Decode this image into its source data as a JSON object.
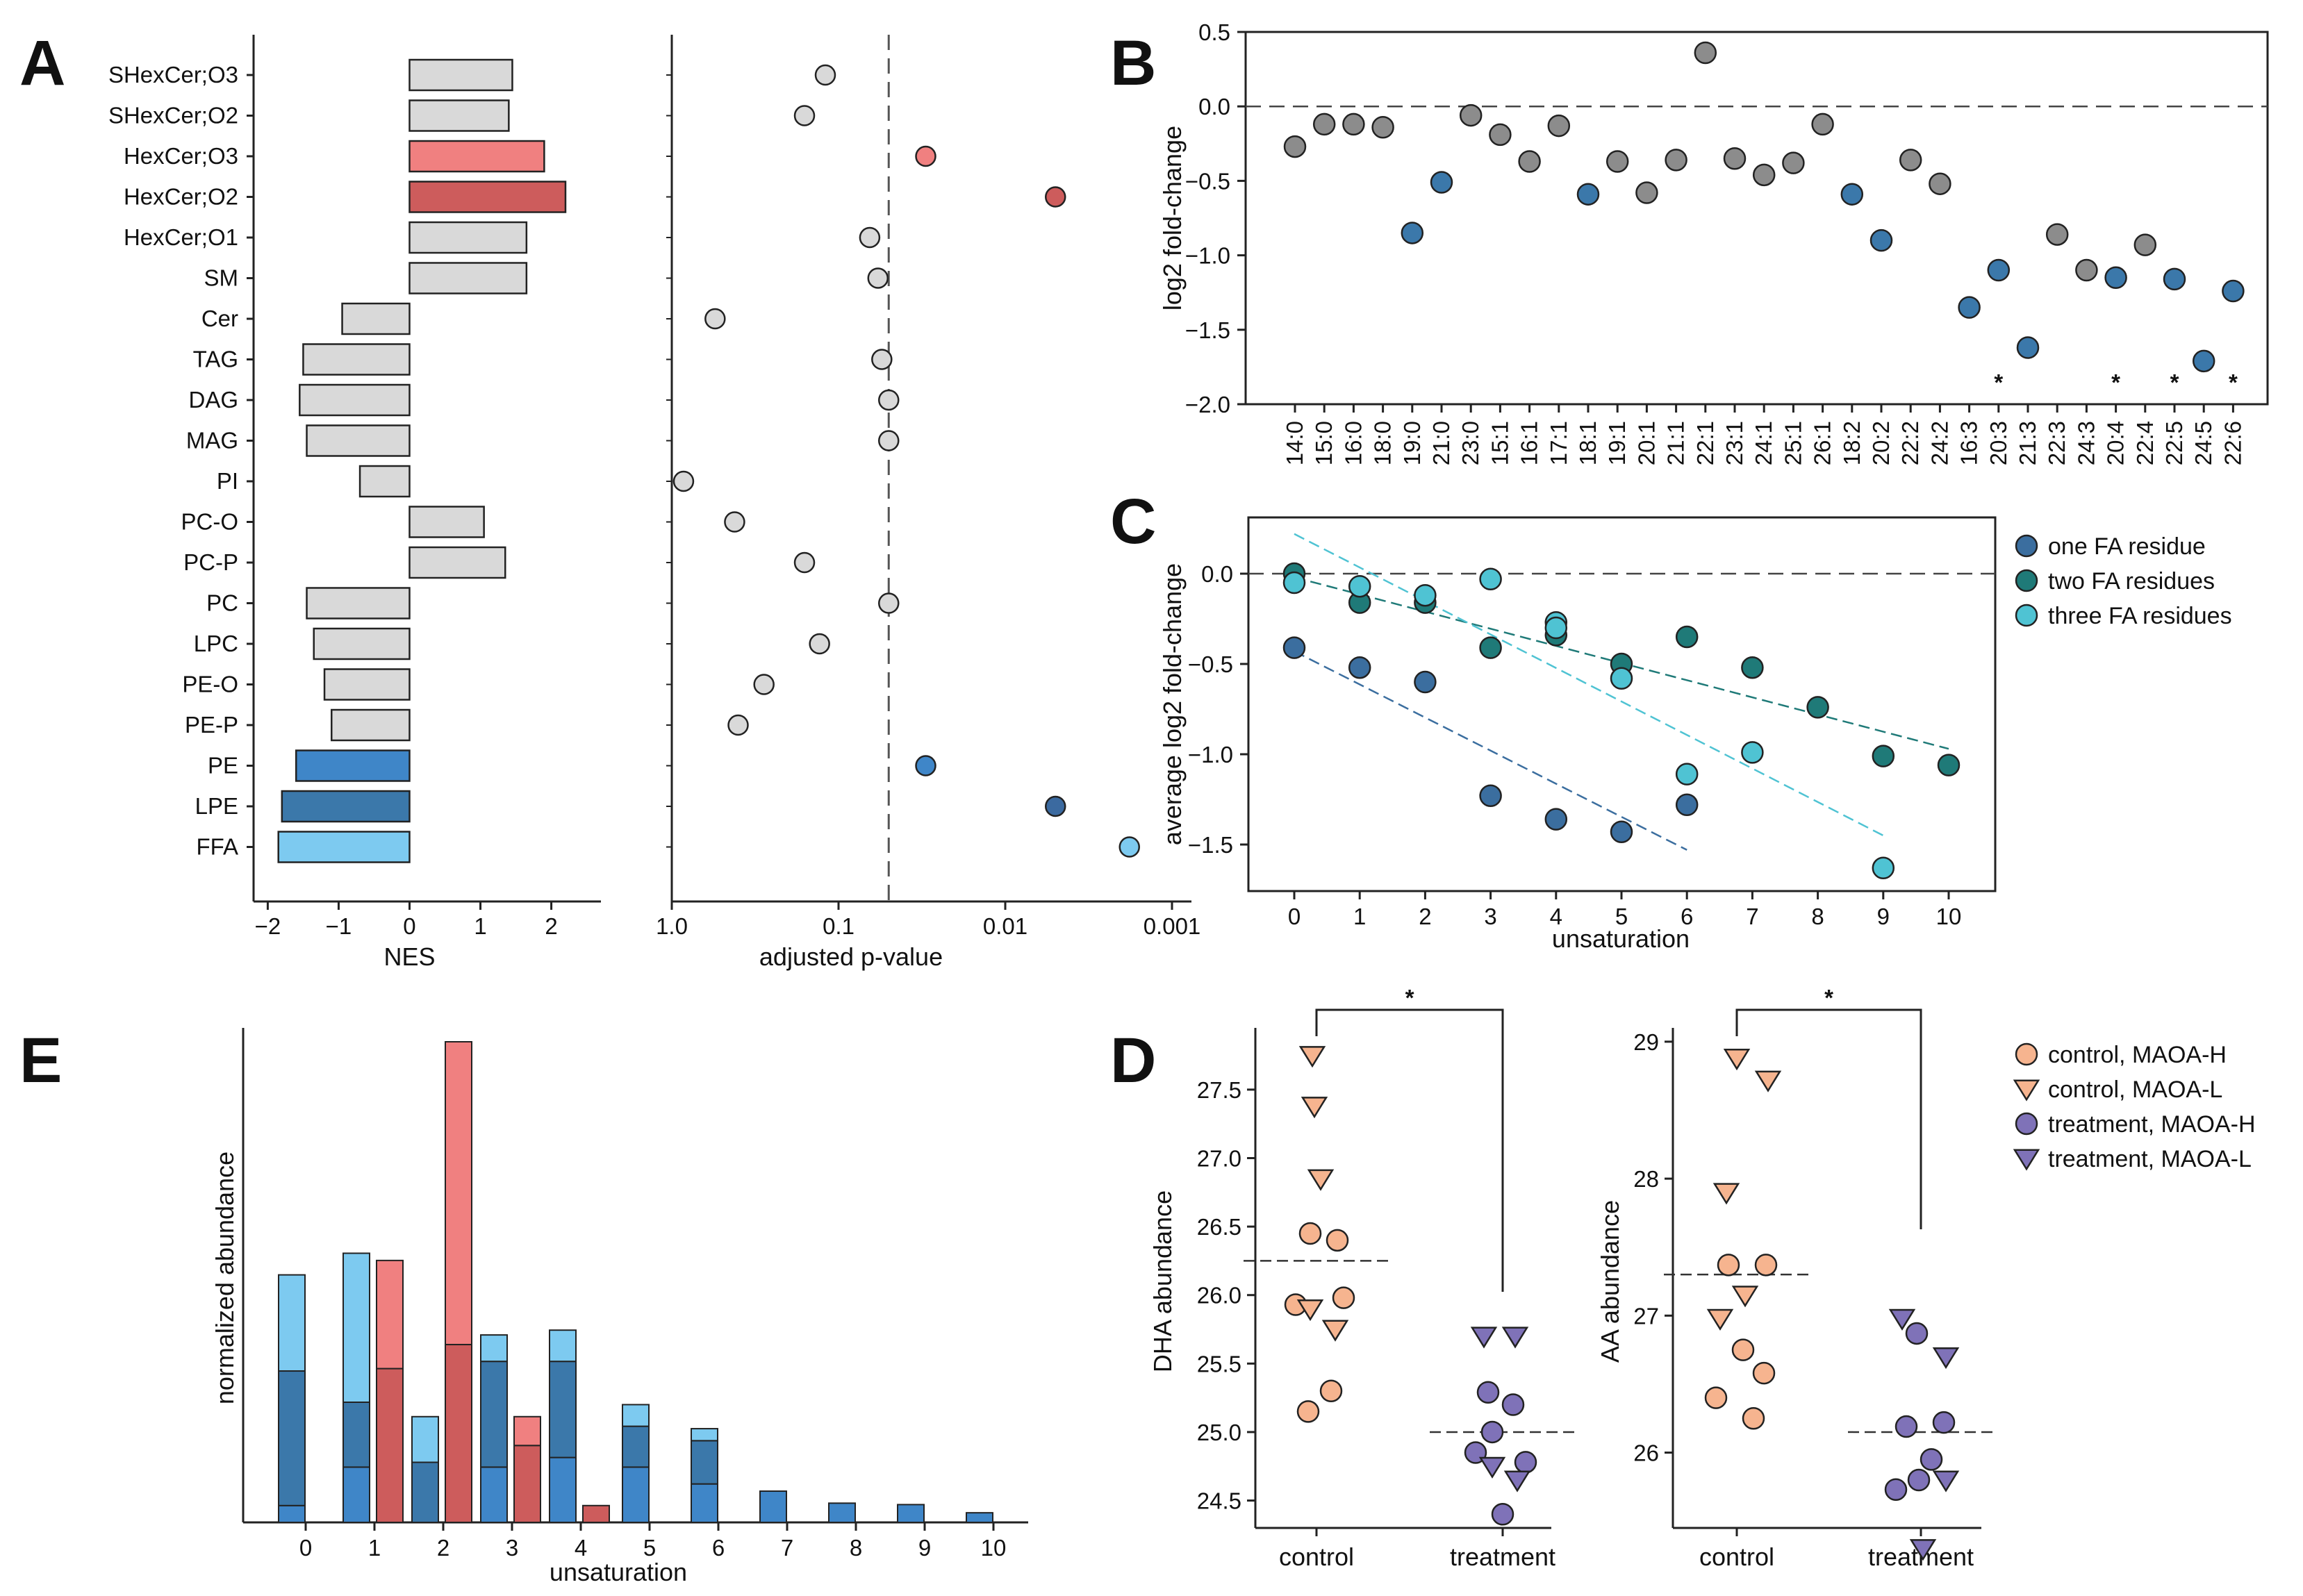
{
  "figure": {
    "panels": [
      "A",
      "B",
      "C",
      "D",
      "E"
    ]
  },
  "chart_data": [
    {
      "id": "A-left",
      "type": "bar",
      "orientation": "horizontal",
      "categories": [
        "SHexCer;O3",
        "SHexCer;O2",
        "HexCer;O3",
        "HexCer;O2",
        "HexCer;O1",
        "SM",
        "Cer",
        "TAG",
        "DAG",
        "MAG",
        "PI",
        "PC-O",
        "PC-P",
        "PC",
        "LPC",
        "PE-O",
        "PE-P",
        "PE",
        "LPE",
        "FFA"
      ],
      "values": [
        1.45,
        1.4,
        1.9,
        2.2,
        1.65,
        1.65,
        -0.95,
        -1.5,
        -1.55,
        -1.45,
        -0.7,
        1.05,
        1.35,
        -1.45,
        -1.35,
        -1.2,
        -1.1,
        -1.6,
        -1.8,
        -1.85
      ],
      "colors": [
        "#d9d9d9",
        "#d9d9d9",
        "#f08080",
        "#cd5c5c",
        "#d9d9d9",
        "#d9d9d9",
        "#d9d9d9",
        "#d9d9d9",
        "#d9d9d9",
        "#d9d9d9",
        "#d9d9d9",
        "#d9d9d9",
        "#d9d9d9",
        "#d9d9d9",
        "#d9d9d9",
        "#d9d9d9",
        "#d9d9d9",
        "#3f86c8",
        "#3b78aa",
        "#7dcaf0"
      ],
      "xlabel": "NES",
      "xlim": [
        -2.2,
        2.7
      ],
      "xticks": [
        -2,
        -1,
        0,
        1,
        2
      ],
      "xtick_labels": [
        "−2",
        "−1",
        "0",
        "1",
        "2"
      ]
    },
    {
      "id": "A-right",
      "type": "scatter",
      "xscale": "log-reversed",
      "categories": [
        "SHexCer;O3",
        "SHexCer;O2",
        "HexCer;O3",
        "HexCer;O2",
        "HexCer;O1",
        "SM",
        "Cer",
        "TAG",
        "DAG",
        "MAG",
        "PI",
        "PC-O",
        "PC-P",
        "PC",
        "LPC",
        "PE-O",
        "PE-P",
        "PE",
        "LPE",
        "FFA"
      ],
      "pvalues": [
        0.12,
        0.16,
        0.03,
        0.005,
        0.065,
        0.058,
        0.55,
        0.055,
        0.05,
        0.05,
        0.85,
        0.42,
        0.16,
        0.05,
        0.13,
        0.28,
        0.4,
        0.03,
        0.005,
        0.0018
      ],
      "colors": [
        "#d9d9d9",
        "#d9d9d9",
        "#f08080",
        "#cd5c5c",
        "#d9d9d9",
        "#d9d9d9",
        "#d9d9d9",
        "#d9d9d9",
        "#d9d9d9",
        "#d9d9d9",
        "#d9d9d9",
        "#d9d9d9",
        "#d9d9d9",
        "#d9d9d9",
        "#d9d9d9",
        "#d9d9d9",
        "#d9d9d9",
        "#3f86c8",
        "#3b6aa0",
        "#7dcaf0"
      ],
      "threshold": 0.05,
      "xlabel": "adjusted p-value",
      "xticks": [
        1.0,
        0.1,
        0.01,
        0.001
      ],
      "xtick_labels": [
        "1.0",
        "0.1",
        "0.01",
        "0.001"
      ]
    },
    {
      "id": "B",
      "type": "scatter",
      "categories": [
        "14:0",
        "15:0",
        "16:0",
        "18:0",
        "19:0",
        "21:0",
        "23:0",
        "15:1",
        "16:1",
        "17:1",
        "18:1",
        "19:1",
        "20:1",
        "21:1",
        "22:1",
        "23:1",
        "24:1",
        "25:1",
        "26:1",
        "18:2",
        "20:2",
        "22:2",
        "24:2",
        "16:3",
        "20:3",
        "21:3",
        "22:3",
        "24:3",
        "20:4",
        "22:4",
        "22:5",
        "24:5",
        "22:6"
      ],
      "values": [
        -0.27,
        -0.12,
        -0.12,
        -0.14,
        -0.85,
        -0.51,
        -0.06,
        -0.19,
        -0.37,
        -0.13,
        -0.59,
        -0.37,
        -0.58,
        -0.36,
        0.36,
        -0.35,
        -0.46,
        -0.38,
        -0.12,
        -0.59,
        -0.9,
        -0.36,
        -0.52,
        -1.35,
        -1.1,
        -1.62,
        -0.86,
        -1.1,
        -1.15,
        -0.93,
        -1.16,
        -1.71,
        -1.24
      ],
      "point_type": [
        "gray",
        "gray",
        "gray",
        "gray",
        "blue",
        "blue",
        "gray",
        "gray",
        "gray",
        "gray",
        "blue",
        "gray",
        "gray",
        "gray",
        "gray",
        "gray",
        "gray",
        "gray",
        "gray",
        "blue",
        "blue",
        "gray",
        "gray",
        "blue",
        "blue",
        "blue",
        "gray",
        "gray",
        "blue",
        "gray",
        "blue",
        "blue",
        "blue"
      ],
      "significant": [
        "20:3",
        "20:4",
        "22:5",
        "22:6"
      ],
      "star_label": "*",
      "colors": {
        "gray": "#8c8c8c",
        "blue": "#3b78aa"
      },
      "ylabel": "log2 fold-change",
      "ylim": [
        -2.0,
        0.5
      ],
      "yticks": [
        0.5,
        0.0,
        -0.5,
        -1.0,
        -1.5,
        -2.0
      ],
      "ytick_labels": [
        "0.5",
        "0.0",
        "−0.5",
        "−1.0",
        "−1.5",
        "−2.0"
      ]
    },
    {
      "id": "C",
      "type": "scatter",
      "xlabel": "unsaturation",
      "ylabel": "average log2 fold-change",
      "xlim": [
        -0.7,
        10.7
      ],
      "ylim": [
        -1.75,
        0.3
      ],
      "xticks": [
        0,
        1,
        2,
        3,
        4,
        5,
        6,
        7,
        8,
        9,
        10
      ],
      "yticks": [
        0.0,
        -0.5,
        -1.0,
        -1.5
      ],
      "ytick_labels": [
        "0.0",
        "−0.5",
        "−1.0",
        "−1.5"
      ],
      "series": [
        {
          "name": "one FA residue",
          "color": "#3b6e9f",
          "x": [
            0,
            1,
            2,
            3,
            4,
            5,
            6
          ],
          "y": [
            -0.41,
            -0.52,
            -0.6,
            -1.23,
            -1.36,
            -1.43,
            -1.28
          ],
          "trend": [
            [
              0,
              -0.43
            ],
            [
              6,
              -1.53
            ]
          ]
        },
        {
          "name": "two FA residues",
          "color": "#1f7a78",
          "x": [
            0,
            1,
            2,
            3,
            4,
            5,
            6,
            7,
            8,
            9,
            10
          ],
          "y": [
            0.0,
            -0.16,
            -0.16,
            -0.41,
            -0.34,
            -0.5,
            -0.35,
            -0.52,
            -0.74,
            -1.01,
            -1.06
          ],
          "trend": [
            [
              0,
              -0.02
            ],
            [
              10,
              -0.97
            ]
          ]
        },
        {
          "name": "three FA residues",
          "color": "#4fc3d3",
          "x": [
            0,
            1,
            2,
            3,
            4,
            4,
            5,
            6,
            7,
            9
          ],
          "y": [
            -0.05,
            -0.07,
            -0.12,
            -0.03,
            -0.27,
            -0.3,
            -0.58,
            -1.11,
            -0.99,
            -1.63
          ],
          "trend": [
            [
              0,
              0.22
            ],
            [
              9,
              -1.45
            ]
          ]
        }
      ]
    },
    {
      "id": "D-left",
      "type": "scatter",
      "categories": [
        "control",
        "treatment"
      ],
      "ylabel": "DHA abundance",
      "ylim": [
        24.3,
        27.9
      ],
      "yticks": [
        24.5,
        25.0,
        25.5,
        26.0,
        26.5,
        27.0,
        27.5
      ],
      "ytick_labels": [
        "24.5",
        "25.0",
        "25.5",
        "26.0",
        "26.5",
        "27.0",
        "27.5"
      ],
      "means": [
        26.25,
        25.0
      ],
      "sig_label": "*",
      "points": [
        {
          "group": "control",
          "x": -0.02,
          "y": 27.75,
          "marker": "triangle"
        },
        {
          "group": "control",
          "x": -0.01,
          "y": 27.38,
          "marker": "triangle"
        },
        {
          "group": "control",
          "x": 0.02,
          "y": 26.85,
          "marker": "triangle"
        },
        {
          "group": "control",
          "x": -0.03,
          "y": 26.45,
          "marker": "circle"
        },
        {
          "group": "control",
          "x": 0.1,
          "y": 26.4,
          "marker": "circle"
        },
        {
          "group": "control",
          "x": 0.13,
          "y": 25.98,
          "marker": "circle"
        },
        {
          "group": "control",
          "x": -0.1,
          "y": 25.93,
          "marker": "circle"
        },
        {
          "group": "control",
          "x": -0.03,
          "y": 25.9,
          "marker": "triangle"
        },
        {
          "group": "control",
          "x": 0.09,
          "y": 25.75,
          "marker": "triangle"
        },
        {
          "group": "control",
          "x": 0.07,
          "y": 25.3,
          "marker": "circle"
        },
        {
          "group": "control",
          "x": -0.04,
          "y": 25.15,
          "marker": "circle"
        },
        {
          "group": "treatment",
          "x": -0.09,
          "y": 25.7,
          "marker": "triangle"
        },
        {
          "group": "treatment",
          "x": 0.06,
          "y": 25.7,
          "marker": "triangle"
        },
        {
          "group": "treatment",
          "x": -0.07,
          "y": 25.29,
          "marker": "circle"
        },
        {
          "group": "treatment",
          "x": 0.05,
          "y": 25.2,
          "marker": "circle"
        },
        {
          "group": "treatment",
          "x": -0.05,
          "y": 25.0,
          "marker": "circle"
        },
        {
          "group": "treatment",
          "x": -0.13,
          "y": 24.85,
          "marker": "circle"
        },
        {
          "group": "treatment",
          "x": 0.11,
          "y": 24.78,
          "marker": "circle"
        },
        {
          "group": "treatment",
          "x": -0.05,
          "y": 24.75,
          "marker": "triangle"
        },
        {
          "group": "treatment",
          "x": 0.07,
          "y": 24.65,
          "marker": "triangle"
        },
        {
          "group": "treatment",
          "x": 0.0,
          "y": 24.4,
          "marker": "circle"
        }
      ]
    },
    {
      "id": "D-right",
      "type": "scatter",
      "categories": [
        "control",
        "treatment"
      ],
      "ylabel": "AA abundance",
      "ylim": [
        25.45,
        29.05
      ],
      "yticks": [
        26,
        27,
        28,
        29
      ],
      "ytick_labels": [
        "26",
        "27",
        "28",
        "29"
      ],
      "means": [
        27.3,
        26.15
      ],
      "sig_label": "*",
      "points": [
        {
          "group": "control",
          "x": 0.0,
          "y": 28.88,
          "marker": "triangle"
        },
        {
          "group": "control",
          "x": 0.15,
          "y": 28.72,
          "marker": "triangle"
        },
        {
          "group": "control",
          "x": -0.05,
          "y": 27.9,
          "marker": "triangle"
        },
        {
          "group": "control",
          "x": -0.04,
          "y": 27.37,
          "marker": "circle"
        },
        {
          "group": "control",
          "x": 0.14,
          "y": 27.37,
          "marker": "circle"
        },
        {
          "group": "control",
          "x": 0.04,
          "y": 27.15,
          "marker": "triangle"
        },
        {
          "group": "control",
          "x": -0.08,
          "y": 26.98,
          "marker": "triangle"
        },
        {
          "group": "control",
          "x": 0.03,
          "y": 26.75,
          "marker": "circle"
        },
        {
          "group": "control",
          "x": 0.13,
          "y": 26.58,
          "marker": "circle"
        },
        {
          "group": "control",
          "x": -0.1,
          "y": 26.4,
          "marker": "circle"
        },
        {
          "group": "control",
          "x": 0.08,
          "y": 26.25,
          "marker": "circle"
        },
        {
          "group": "treatment",
          "x": -0.09,
          "y": 26.98,
          "marker": "triangle"
        },
        {
          "group": "treatment",
          "x": -0.02,
          "y": 26.87,
          "marker": "circle"
        },
        {
          "group": "treatment",
          "x": 0.12,
          "y": 26.7,
          "marker": "triangle"
        },
        {
          "group": "treatment",
          "x": -0.07,
          "y": 26.19,
          "marker": "circle"
        },
        {
          "group": "treatment",
          "x": 0.11,
          "y": 26.22,
          "marker": "circle"
        },
        {
          "group": "treatment",
          "x": 0.05,
          "y": 25.95,
          "marker": "circle"
        },
        {
          "group": "treatment",
          "x": -0.01,
          "y": 25.8,
          "marker": "circle"
        },
        {
          "group": "treatment",
          "x": -0.12,
          "y": 25.73,
          "marker": "circle"
        },
        {
          "group": "treatment",
          "x": 0.12,
          "y": 25.8,
          "marker": "triangle"
        },
        {
          "group": "treatment",
          "x": 0.01,
          "y": 25.3,
          "marker": "triangle"
        }
      ]
    },
    {
      "id": "D-legend",
      "type": "legend",
      "entries": [
        {
          "label": "control, MAOA-H",
          "marker": "circle",
          "color": "#f6b48f"
        },
        {
          "label": "control, MAOA-L",
          "marker": "triangle",
          "color": "#f6b48f"
        },
        {
          "label": "treatment, MAOA-H",
          "marker": "circle",
          "color": "#7f72b8"
        },
        {
          "label": "treatment, MAOA-L",
          "marker": "triangle",
          "color": "#7f72b8"
        }
      ]
    },
    {
      "id": "E",
      "type": "bar",
      "xlabel": "unsaturation",
      "ylabel": "normalized abundance",
      "categories": [
        0,
        1,
        2,
        3,
        4,
        5,
        6,
        7,
        8,
        9,
        10
      ],
      "ylim": [
        0,
        1.0
      ],
      "colors": {
        "light": "#7dcaf0",
        "dark": "#3b78aa",
        "blue": "#3f86c8",
        "red": "#f08080",
        "darkred": "#cd5c5c"
      },
      "series": [
        {
          "name": "blue-stack",
          "bars": [
            {
              "x": 0,
              "segments": [
                0.035,
                0.28,
                0.2
              ]
            },
            {
              "x": 1,
              "segments": [
                0.115,
                0.135,
                0.31
              ]
            },
            {
              "x": 2,
              "segments": [
                0.125,
                0.095
              ]
            },
            {
              "x": 3,
              "segments": [
                0.115,
                0.22,
                0.055
              ]
            },
            {
              "x": 4,
              "segments": [
                0.135,
                0.2,
                0.065
              ]
            },
            {
              "x": 5,
              "segments": [
                0.115,
                0.085,
                0.045
              ]
            },
            {
              "x": 6,
              "segments": [
                0.08,
                0.09,
                0.025
              ]
            },
            {
              "x": 7,
              "segments": [
                0.065
              ]
            },
            {
              "x": 8,
              "segments": [
                0.04
              ]
            },
            {
              "x": 9,
              "segments": [
                0.037
              ]
            },
            {
              "x": 10,
              "segments": [
                0.02
              ]
            }
          ]
        },
        {
          "name": "red-stack",
          "bars": [
            {
              "x": 1,
              "segments": [
                0.32,
                0.225
              ]
            },
            {
              "x": 2,
              "segments": [
                0.37,
                0.63
              ]
            },
            {
              "x": 3,
              "segments": [
                0.16,
                0.06
              ]
            },
            {
              "x": 4,
              "segments": [
                0.035
              ]
            }
          ]
        }
      ]
    }
  ]
}
